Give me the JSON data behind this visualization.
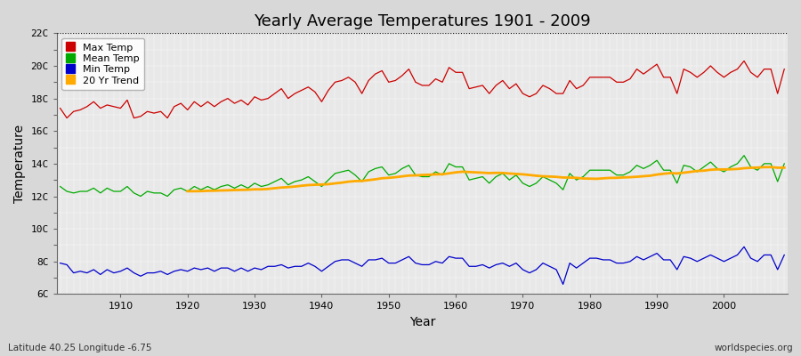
{
  "title": "Yearly Average Temperatures 1901 - 2009",
  "xlabel": "Year",
  "ylabel": "Temperature",
  "subtitle_left": "Latitude 40.25 Longitude -6.75",
  "subtitle_right": "worldspecies.org",
  "years": [
    1901,
    1902,
    1903,
    1904,
    1905,
    1906,
    1907,
    1908,
    1909,
    1910,
    1911,
    1912,
    1913,
    1914,
    1915,
    1916,
    1917,
    1918,
    1919,
    1920,
    1921,
    1922,
    1923,
    1924,
    1925,
    1926,
    1927,
    1928,
    1929,
    1930,
    1931,
    1932,
    1933,
    1934,
    1935,
    1936,
    1937,
    1938,
    1939,
    1940,
    1941,
    1942,
    1943,
    1944,
    1945,
    1946,
    1947,
    1948,
    1949,
    1950,
    1951,
    1952,
    1953,
    1954,
    1955,
    1956,
    1957,
    1958,
    1959,
    1960,
    1961,
    1962,
    1963,
    1964,
    1965,
    1966,
    1967,
    1968,
    1969,
    1970,
    1971,
    1972,
    1973,
    1974,
    1975,
    1976,
    1977,
    1978,
    1979,
    1980,
    1981,
    1982,
    1983,
    1984,
    1985,
    1986,
    1987,
    1988,
    1989,
    1990,
    1991,
    1992,
    1993,
    1994,
    1995,
    1996,
    1997,
    1998,
    1999,
    2000,
    2001,
    2002,
    2003,
    2004,
    2005,
    2006,
    2007,
    2008,
    2009
  ],
  "max_temp": [
    17.4,
    16.8,
    17.2,
    17.3,
    17.5,
    17.8,
    17.4,
    17.6,
    17.5,
    17.4,
    17.9,
    16.8,
    16.9,
    17.2,
    17.1,
    17.2,
    16.8,
    17.5,
    17.7,
    17.3,
    17.8,
    17.5,
    17.8,
    17.5,
    17.8,
    18.0,
    17.7,
    17.9,
    17.6,
    18.1,
    17.9,
    18.0,
    18.3,
    18.6,
    18.0,
    18.3,
    18.5,
    18.7,
    18.4,
    17.8,
    18.5,
    19.0,
    19.1,
    19.3,
    19.0,
    18.3,
    19.1,
    19.5,
    19.7,
    19.0,
    19.1,
    19.4,
    19.8,
    19.0,
    18.8,
    18.8,
    19.2,
    19.0,
    19.9,
    19.6,
    19.6,
    18.6,
    18.7,
    18.8,
    18.3,
    18.8,
    19.1,
    18.6,
    18.9,
    18.3,
    18.1,
    18.3,
    18.8,
    18.6,
    18.3,
    18.3,
    19.1,
    18.6,
    18.8,
    19.3,
    19.3,
    19.3,
    19.3,
    19.0,
    19.0,
    19.2,
    19.8,
    19.5,
    19.8,
    20.1,
    19.3,
    19.3,
    18.3,
    19.8,
    19.6,
    19.3,
    19.6,
    20.0,
    19.6,
    19.3,
    19.6,
    19.8,
    20.3,
    19.6,
    19.3,
    19.8,
    19.8,
    18.3,
    19.8
  ],
  "mean_temp": [
    12.6,
    12.3,
    12.2,
    12.3,
    12.3,
    12.5,
    12.2,
    12.5,
    12.3,
    12.3,
    12.6,
    12.2,
    12.0,
    12.3,
    12.2,
    12.2,
    12.0,
    12.4,
    12.5,
    12.3,
    12.6,
    12.4,
    12.6,
    12.4,
    12.6,
    12.7,
    12.5,
    12.7,
    12.5,
    12.8,
    12.6,
    12.7,
    12.9,
    13.1,
    12.7,
    12.9,
    13.0,
    13.2,
    12.9,
    12.6,
    13.0,
    13.4,
    13.5,
    13.6,
    13.3,
    12.9,
    13.5,
    13.7,
    13.8,
    13.3,
    13.4,
    13.7,
    13.9,
    13.3,
    13.2,
    13.2,
    13.5,
    13.3,
    14.0,
    13.8,
    13.8,
    13.0,
    13.1,
    13.2,
    12.8,
    13.2,
    13.4,
    13.0,
    13.3,
    12.8,
    12.6,
    12.8,
    13.2,
    13.0,
    12.8,
    12.4,
    13.4,
    13.0,
    13.2,
    13.6,
    13.6,
    13.6,
    13.6,
    13.3,
    13.3,
    13.5,
    13.9,
    13.7,
    13.9,
    14.2,
    13.6,
    13.6,
    12.8,
    13.9,
    13.8,
    13.5,
    13.8,
    14.1,
    13.7,
    13.5,
    13.8,
    14.0,
    14.5,
    13.8,
    13.6,
    14.0,
    14.0,
    12.9,
    14.0
  ],
  "min_temp": [
    7.9,
    7.8,
    7.3,
    7.4,
    7.3,
    7.5,
    7.2,
    7.5,
    7.3,
    7.4,
    7.6,
    7.3,
    7.1,
    7.3,
    7.3,
    7.4,
    7.2,
    7.4,
    7.5,
    7.4,
    7.6,
    7.5,
    7.6,
    7.4,
    7.6,
    7.6,
    7.4,
    7.6,
    7.4,
    7.6,
    7.5,
    7.7,
    7.7,
    7.8,
    7.6,
    7.7,
    7.7,
    7.9,
    7.7,
    7.4,
    7.7,
    8.0,
    8.1,
    8.1,
    7.9,
    7.7,
    8.1,
    8.1,
    8.2,
    7.9,
    7.9,
    8.1,
    8.3,
    7.9,
    7.8,
    7.8,
    8.0,
    7.9,
    8.3,
    8.2,
    8.2,
    7.7,
    7.7,
    7.8,
    7.6,
    7.8,
    7.9,
    7.7,
    7.9,
    7.5,
    7.3,
    7.5,
    7.9,
    7.7,
    7.5,
    6.6,
    7.9,
    7.6,
    7.9,
    8.2,
    8.2,
    8.1,
    8.1,
    7.9,
    7.9,
    8.0,
    8.3,
    8.1,
    8.3,
    8.5,
    8.1,
    8.1,
    7.5,
    8.3,
    8.2,
    8.0,
    8.2,
    8.4,
    8.2,
    8.0,
    8.2,
    8.4,
    8.9,
    8.2,
    8.0,
    8.4,
    8.4,
    7.5,
    8.4
  ],
  "ylim_min": 6,
  "ylim_max": 22,
  "yticks": [
    6,
    7,
    8,
    9,
    10,
    11,
    12,
    13,
    14,
    15,
    16,
    17,
    18,
    19,
    20,
    21,
    22
  ],
  "ytick_labels": [
    "6C",
    "",
    "8C",
    "",
    "10C",
    "",
    "12C",
    "",
    "14C",
    "",
    "16C",
    "",
    "18C",
    "",
    "20C",
    "",
    "22C"
  ],
  "dotted_line_y": 22,
  "fig_bg_color": "#d8d8d8",
  "plot_bg_color": "#e8e8e8",
  "max_color": "#cc0000",
  "mean_color": "#00aa00",
  "min_color": "#0000cc",
  "trend_color": "#ffaa00",
  "trend_linewidth": 2.0,
  "line_linewidth": 0.9,
  "legend_labels": [
    "Max Temp",
    "Mean Temp",
    "Min Temp",
    "20 Yr Trend"
  ],
  "trend_window": 20,
  "xticks": [
    1910,
    1920,
    1930,
    1940,
    1950,
    1960,
    1970,
    1980,
    1990,
    2000
  ]
}
